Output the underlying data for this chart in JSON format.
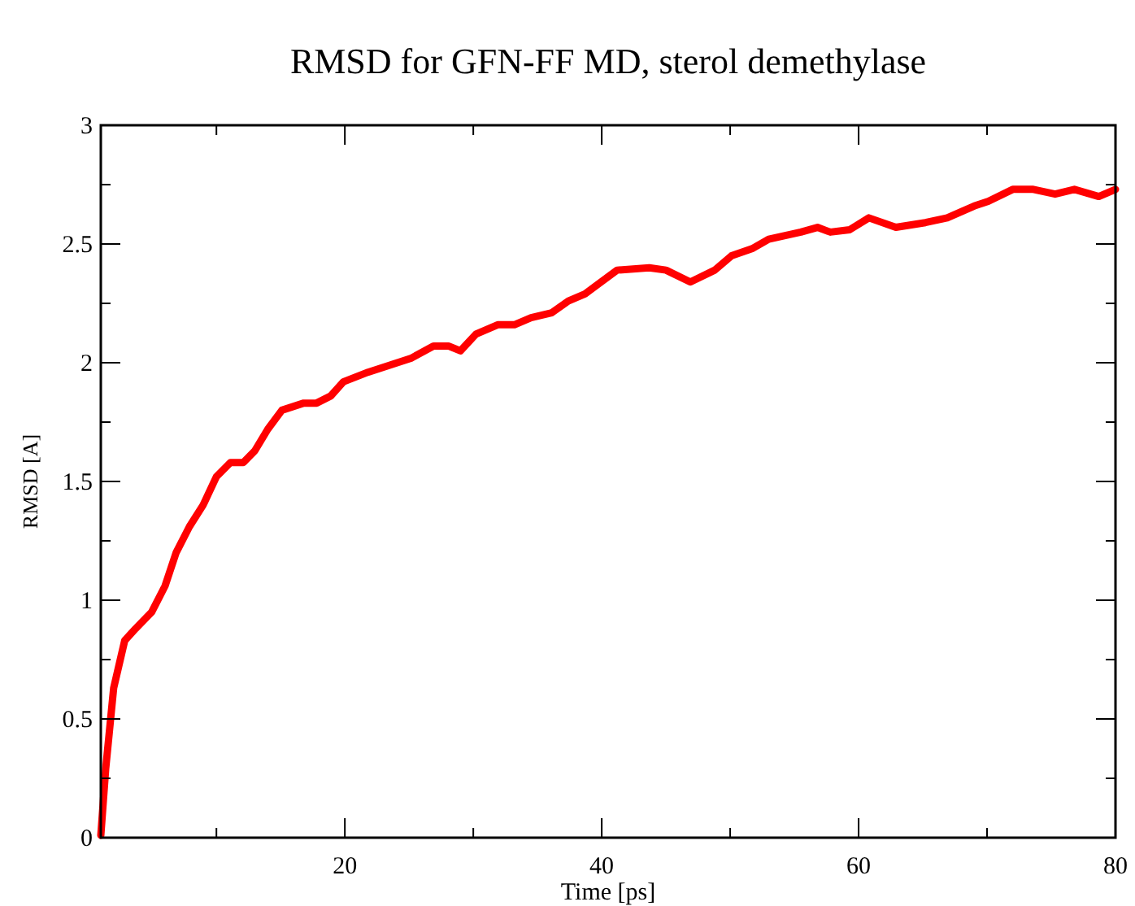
{
  "chart_data": {
    "type": "line",
    "title": "RMSD for GFN-FF MD, sterol demethylase",
    "xlabel": "Time [ps]",
    "ylabel": "RMSD [A]",
    "xlim": [
      1,
      80
    ],
    "ylim": [
      0,
      3
    ],
    "xticks": [
      {
        "value": 10,
        "label": null
      },
      20,
      {
        "value": 30,
        "label": null
      },
      40,
      {
        "value": 50,
        "label": null
      },
      60,
      {
        "value": 70,
        "label": null
      },
      80
    ],
    "yticks": [
      0,
      {
        "value": 0.25,
        "label": null
      },
      0.5,
      {
        "value": 0.75,
        "label": null
      },
      1,
      {
        "value": 1.25,
        "label": null
      },
      1.5,
      {
        "value": 1.75,
        "label": null
      },
      2,
      {
        "value": 2.25,
        "label": null
      },
      2.5,
      {
        "value": 2.75,
        "label": null
      },
      3
    ],
    "grid": false,
    "marker": "none",
    "line_style": "solid",
    "series": [
      {
        "color": "#ff0000",
        "x": [
          1,
          1.38,
          2.0,
          2.86,
          3.7,
          4.96,
          6.0,
          6.86,
          7.9,
          8.96,
          10.0,
          11.1,
          12.1,
          13.0,
          14.0,
          15.1,
          16.8,
          17.8,
          18.9,
          19.9,
          21.8,
          23.5,
          25.2,
          26.9,
          28.1,
          29.0,
          30.2,
          31.9,
          33.2,
          34.5,
          36.1,
          37.4,
          38.7,
          39.7,
          41.2,
          43.7,
          45.0,
          46.9,
          48.8,
          50.1,
          51.7,
          53.0,
          55.5,
          56.8,
          57.8,
          59.3,
          60.8,
          62.9,
          65.2,
          66.9,
          69.0,
          70.1,
          72.0,
          73.6,
          75.3,
          76.8,
          78.7,
          80
        ],
        "values": [
          0.01,
          0.29,
          0.63,
          0.83,
          0.88,
          0.95,
          1.06,
          1.2,
          1.31,
          1.4,
          1.52,
          1.58,
          1.58,
          1.63,
          1.72,
          1.8,
          1.83,
          1.83,
          1.86,
          1.92,
          1.96,
          1.99,
          2.02,
          2.07,
          2.07,
          2.05,
          2.12,
          2.16,
          2.16,
          2.19,
          2.21,
          2.26,
          2.29,
          2.33,
          2.39,
          2.4,
          2.39,
          2.34,
          2.39,
          2.45,
          2.48,
          2.52,
          2.55,
          2.57,
          2.55,
          2.56,
          2.61,
          2.57,
          2.59,
          2.61,
          2.66,
          2.68,
          2.73,
          2.73,
          2.71,
          2.73,
          2.7,
          2.73
        ]
      }
    ]
  }
}
